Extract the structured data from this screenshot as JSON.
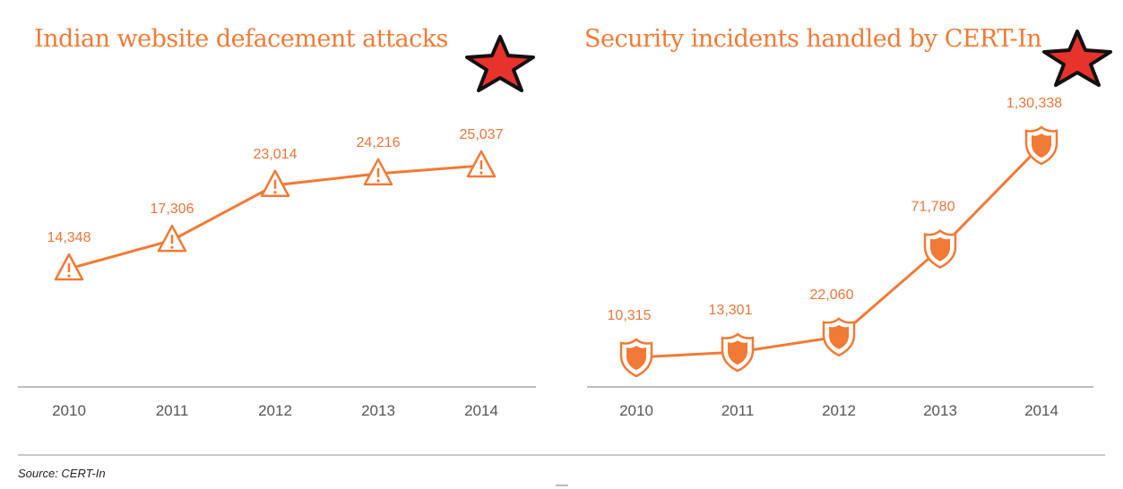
{
  "chart_data": [
    {
      "type": "line",
      "title": "Indian website defacement attacks",
      "categories": [
        "2010",
        "2011",
        "2012",
        "2013",
        "2014"
      ],
      "series": [
        {
          "values": [
            14348,
            17306,
            23014,
            24216,
            25037
          ]
        }
      ],
      "data_labels": [
        "14,348",
        "17,306",
        "23,014",
        "24,216",
        "25,037"
      ],
      "marker": "warning-triangle",
      "ylim": [
        0,
        30000
      ],
      "grid": false,
      "color": "#F07A36"
    },
    {
      "type": "line",
      "title": "Security incidents handled by CERT-In",
      "categories": [
        "2010",
        "2011",
        "2012",
        "2013",
        "2014"
      ],
      "series": [
        {
          "values": [
            10315,
            13301,
            22060,
            71780,
            130338
          ]
        }
      ],
      "data_labels": [
        "10,315",
        "13,301",
        "22,060",
        "71,780",
        "1,30,338"
      ],
      "marker": "shield",
      "ylim": [
        0,
        140000
      ],
      "grid": false,
      "color": "#F07A36"
    }
  ],
  "source": "Source: CERT-In",
  "colors": {
    "accent": "#EF7B37",
    "star": "#E8322C"
  }
}
